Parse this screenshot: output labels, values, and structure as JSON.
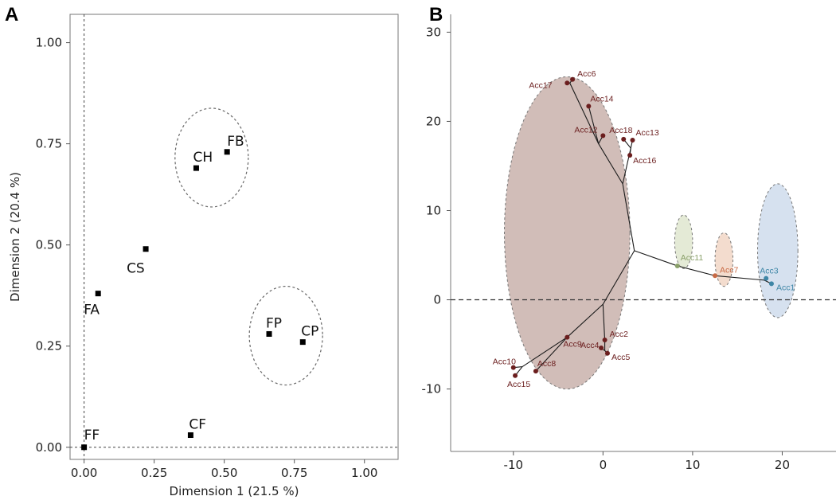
{
  "chart_data": [
    {
      "panel": "A",
      "type": "scatter",
      "xlabel": "Dimension 1 (21.5 %)",
      "ylabel": "Dimension 2 (20.4 %)",
      "xlim": [
        -0.05,
        1.12
      ],
      "ylim": [
        -0.03,
        1.07
      ],
      "xticks": [
        "0.00",
        "0.25",
        "0.50",
        "0.75",
        "1.00"
      ],
      "yticks": [
        "0.00",
        "0.25",
        "0.50",
        "0.75",
        "1.00"
      ],
      "points": [
        {
          "label": "FF",
          "x": 0.0,
          "y": 0.0
        },
        {
          "label": "FA",
          "x": 0.05,
          "y": 0.38
        },
        {
          "label": "CS",
          "x": 0.22,
          "y": 0.49
        },
        {
          "label": "CH",
          "x": 0.4,
          "y": 0.69
        },
        {
          "label": "FB",
          "x": 0.51,
          "y": 0.73
        },
        {
          "label": "FP",
          "x": 0.66,
          "y": 0.28
        },
        {
          "label": "CP",
          "x": 0.78,
          "y": 0.26
        },
        {
          "label": "CF",
          "x": 0.38,
          "y": 0.03
        }
      ],
      "reference_lines": {
        "x": 0,
        "y": 0,
        "style": "dashed"
      },
      "groups": [
        [
          "CH",
          "FB"
        ],
        [
          "FP",
          "CP"
        ]
      ],
      "grid": false
    },
    {
      "panel": "B",
      "type": "scatter",
      "subtype": "dendrogram-tree",
      "xlim": [
        -17,
        26
      ],
      "ylim": [
        -17,
        32
      ],
      "xticks": [
        "-10",
        "0",
        "10",
        "20"
      ],
      "yticks": [
        "-10",
        "0",
        "10",
        "20",
        "30"
      ],
      "colors": {
        "brown": "#6b1e1e",
        "green": "#8aa06a",
        "orange": "#c86a44",
        "blue": "#3e86a6"
      },
      "groups": [
        {
          "color": "brown",
          "cx": -4,
          "cy": 7.5,
          "rx": 14,
          "ry": 35
        },
        {
          "color": "green",
          "cx": 9,
          "cy": 6.5,
          "rx": 2,
          "ry": 6
        },
        {
          "color": "orange",
          "cx": 13.5,
          "cy": 4.5,
          "rx": 2,
          "ry": 6
        },
        {
          "color": "blue",
          "cx": 19.5,
          "cy": 5.5,
          "rx": 4.5,
          "ry": 15
        }
      ],
      "points": [
        {
          "label": "Acc1",
          "x": 18.8,
          "y": 1.8,
          "color": "blue"
        },
        {
          "label": "Acc2",
          "x": 0.2,
          "y": -4.5,
          "color": "brown"
        },
        {
          "label": "Acc3",
          "x": 18.2,
          "y": 2.4,
          "color": "blue"
        },
        {
          "label": "Acc4",
          "x": -0.2,
          "y": -5.4,
          "color": "brown"
        },
        {
          "label": "Acc5",
          "x": 0.5,
          "y": -6.0,
          "color": "brown"
        },
        {
          "label": "Acc6",
          "x": -3.4,
          "y": 24.7,
          "color": "brown"
        },
        {
          "label": "Acc7",
          "x": 12.5,
          "y": 2.7,
          "color": "orange"
        },
        {
          "label": "Acc8",
          "x": -7.5,
          "y": -8.0,
          "color": "brown"
        },
        {
          "label": "Acc9",
          "x": -4.0,
          "y": -4.2,
          "color": "brown"
        },
        {
          "label": "Acc10",
          "x": -10.0,
          "y": -7.6,
          "color": "brown"
        },
        {
          "label": "Acc11",
          "x": 8.3,
          "y": 3.8,
          "color": "green"
        },
        {
          "label": "Acc12",
          "x": 0.0,
          "y": 18.4,
          "color": "brown"
        },
        {
          "label": "Acc13",
          "x": 3.3,
          "y": 17.9,
          "color": "brown"
        },
        {
          "label": "Acc14",
          "x": -1.6,
          "y": 21.7,
          "color": "brown"
        },
        {
          "label": "Acc15",
          "x": -9.8,
          "y": -8.5,
          "color": "brown"
        },
        {
          "label": "Acc16",
          "x": 3.0,
          "y": 16.2,
          "color": "brown"
        },
        {
          "label": "Acc17",
          "x": -4.0,
          "y": 24.3,
          "color": "brown"
        },
        {
          "label": "Acc18",
          "x": 2.3,
          "y": 18.0,
          "color": "brown"
        }
      ],
      "reference_lines": {
        "y": 0,
        "style": "dashed"
      },
      "grid": false
    }
  ]
}
